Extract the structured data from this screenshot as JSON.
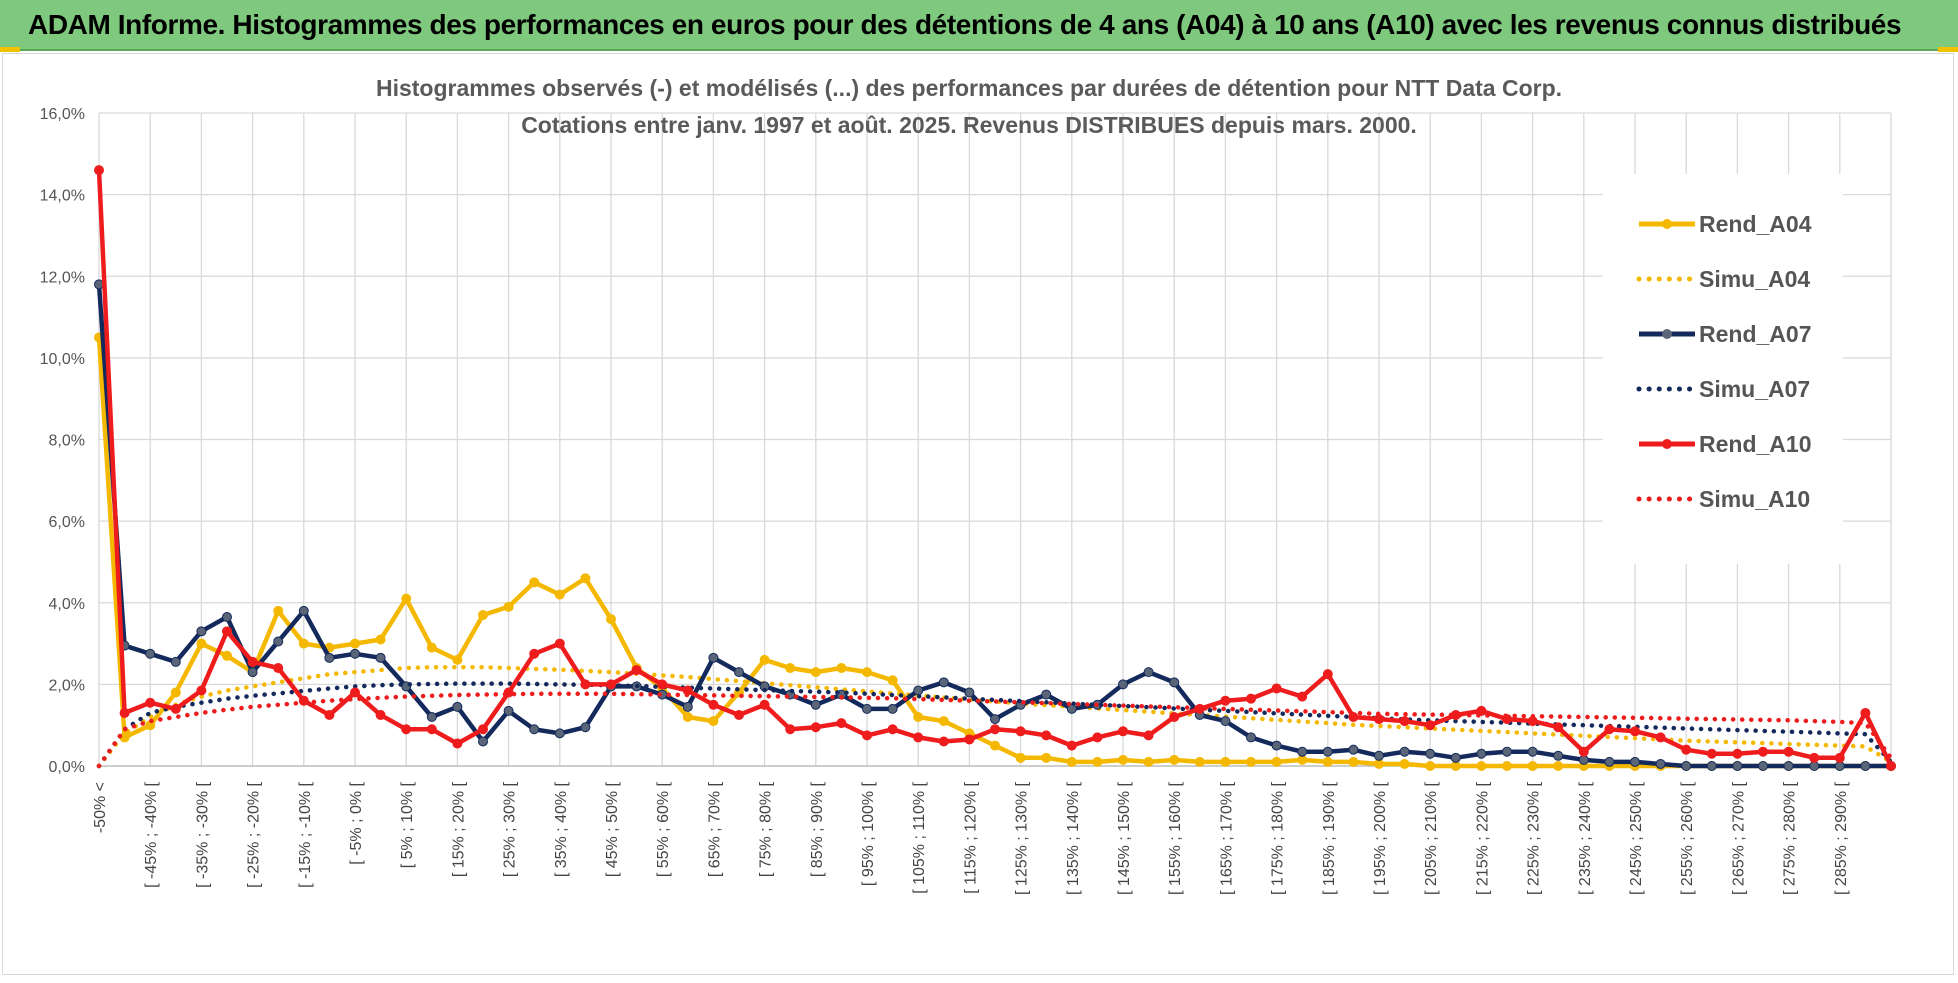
{
  "banner": {
    "title": "ADAM Informe. Histogrammes des performances en euros pour des détentions de 4 ans (A04) à 10 ans (A10) avec les revenus connus distribués"
  },
  "colors": {
    "banner_bg": "#7fc97f",
    "gold": "#f5b800",
    "navy": "#142a5c",
    "red": "#ee1c1c",
    "grid": "#d9d9d9"
  },
  "chart_data": {
    "type": "line",
    "title": "Histogrammes observés (-) et modélisés (...) des performances par durées de détention pour NTT Data Corp.",
    "subtitle": "Cotations entre janv. 1997 et août. 2025. Revenus DISTRIBUES depuis mars. 2000.",
    "ylim": [
      0,
      16
    ],
    "y_ticks": [
      "0,0%",
      "2,0%",
      "4,0%",
      "6,0%",
      "8,0%",
      "10,0%",
      "12,0%",
      "14,0%",
      "16,0%"
    ],
    "grid": true,
    "legend_position": "right",
    "categories": [
      "-50% <",
      "[ -50% ; -45% [",
      "[ -45% ; -40% [",
      "[ -40% ; -35% [",
      "[ -35% ; -30% [",
      "[ -30% ; -25% [",
      "[ -25% ; -20% [",
      "[ -20% ; -15% [",
      "[ -15% ; -10% [",
      "[ -10% ; -5% [",
      "[ -5% ; 0% [",
      "[ 0% ; 5% [",
      "[ 5% ; 10% [",
      "[ 10% ; 15% [",
      "[ 15% ; 20% [",
      "[ 20% ; 25% [",
      "[ 25% ; 30% [",
      "[ 30% ; 35% [",
      "[ 35% ; 40% [",
      "[ 40% ; 45% [",
      "[ 45% ; 50% [",
      "[ 50% ; 55% [",
      "[ 55% ; 60% [",
      "[ 60% ; 65% [",
      "[ 65% ; 70% [",
      "[ 70% ; 75% [",
      "[ 75% ; 80% [",
      "[ 80% ; 85% [",
      "[ 85% ; 90% [",
      "[ 90% ; 95% [",
      "[ 95% ; 100% [",
      "[ 100% ; 105% [",
      "[ 105% ; 110% [",
      "[ 110% ; 115% [",
      "[ 115% ; 120% [",
      "[ 120% ; 125% [",
      "[ 125% ; 130% [",
      "[ 130% ; 135% [",
      "[ 135% ; 140% [",
      "[ 140% ; 145% [",
      "[ 145% ; 150% [",
      "[ 150% ; 155% [",
      "[ 155% ; 160% [",
      "[ 160% ; 165% [",
      "[ 165% ; 170% [",
      "[ 170% ; 175% [",
      "[ 175% ; 180% [",
      "[ 180% ; 185% [",
      "[ 185% ; 190% [",
      "[ 190% ; 195% [",
      "[ 195% ; 200% [",
      "[ 200% ; 205% [",
      "[ 205% ; 210% [",
      "[ 210% ; 215% [",
      "[ 215% ; 220% [",
      "[ 220% ; 225% [",
      "[ 225% ; 230% [",
      "[ 230% ; 235% [",
      "[ 235% ; 240% [",
      "[ 240% ; 245% [",
      "[ 245% ; 250% [",
      "[ 250% ; 255% [",
      "[ 255% ; 260% [",
      "[ 260% ; 265% [",
      "[ 265% ; 270% [",
      "[ 270% ; 275% [",
      "[ 275% ; 280% [",
      "[ 280% ; 285% [",
      "[ 285% ; 290% [",
      "[ 290% ; 295% [",
      "[ 295% ; 300% ["
    ],
    "visible_tick_labels": [
      "-50% <",
      "[ -45% ; -40% [",
      "[ -35% ; -30% [",
      "[ -25% ; -20% [",
      "[ -15% ; -10% [",
      "[ -5% ; 0% [",
      "[ 5% ; 10% [",
      "[ 15% ; 20% [",
      "[ 25% ; 30% [",
      "[ 35% ; 40% [",
      "[ 45% ; 50% [",
      "[ 55% ; 60% [",
      "[ 65% ; 70% [",
      "[ 75% ; 80% [",
      "[ 85% ; 90% [",
      "[ 95% ; 100% [",
      "[ 105% ; 110% [",
      "[ 115% ; 120% [",
      "[ 125% ; 130% [",
      "[ 135% ; 140% [",
      "[ 145% ; 150% [",
      "[ 155% ; 160% [",
      "[ 165% ; 170% [",
      "[ 175% ; 180% [",
      "[ 185% ; 190% [",
      "[ 195% ; 200% [",
      "[ 205% ; 210% [",
      "[ 215% ; 220% [",
      "[ 225% ; 230% [",
      "[ 235% ; 240% [",
      "[ 245% ; 250% [",
      "[ 255% ; 260% [",
      "[ 265% ; 270% [",
      "[ 275% ; 280% [",
      "[ 285% ; 290% ["
    ],
    "series": [
      {
        "name": "Rend_A04",
        "style": "solid",
        "markers": true,
        "color": "#f5b800",
        "values": [
          10.5,
          0.7,
          1.0,
          1.8,
          3.0,
          2.7,
          2.3,
          3.8,
          3.0,
          2.9,
          3.0,
          3.1,
          4.1,
          2.9,
          2.6,
          3.7,
          3.9,
          4.5,
          4.2,
          4.6,
          3.6,
          2.4,
          1.9,
          1.2,
          1.1,
          1.8,
          2.6,
          2.4,
          2.3,
          2.4,
          2.3,
          2.1,
          1.2,
          1.1,
          0.8,
          0.5,
          0.2,
          0.2,
          0.1,
          0.1,
          0.15,
          0.1,
          0.15,
          0.1,
          0.1,
          0.1,
          0.1,
          0.15,
          0.1,
          0.1,
          0.05,
          0.05,
          0.0,
          0.0,
          0.0,
          0.0,
          0.0,
          0.0,
          0.0,
          0.0,
          0.0,
          0.0,
          0.0,
          0.0,
          0.0,
          0.0,
          0.0,
          0.0,
          0.0,
          0.0,
          0.0
        ]
      },
      {
        "name": "Simu_A04",
        "style": "dotted",
        "markers": false,
        "color": "#f5b800",
        "values": [
          0.0,
          0.8,
          1.2,
          1.5,
          1.7,
          1.85,
          1.95,
          2.05,
          2.15,
          2.25,
          2.3,
          2.35,
          2.4,
          2.42,
          2.42,
          2.42,
          2.4,
          2.38,
          2.36,
          2.33,
          2.3,
          2.26,
          2.22,
          2.18,
          2.13,
          2.08,
          2.03,
          1.98,
          1.93,
          1.88,
          1.83,
          1.78,
          1.73,
          1.68,
          1.63,
          1.58,
          1.53,
          1.49,
          1.45,
          1.41,
          1.37,
          1.33,
          1.29,
          1.25,
          1.21,
          1.17,
          1.13,
          1.09,
          1.05,
          1.01,
          0.98,
          0.95,
          0.92,
          0.89,
          0.86,
          0.83,
          0.8,
          0.77,
          0.74,
          0.71,
          0.68,
          0.65,
          0.62,
          0.6,
          0.58,
          0.56,
          0.54,
          0.52,
          0.5,
          0.48,
          0.1
        ]
      },
      {
        "name": "Rend_A07",
        "style": "solid",
        "markers": true,
        "color": "#142a5c",
        "values": [
          11.8,
          2.95,
          2.75,
          2.55,
          3.3,
          3.65,
          2.3,
          3.05,
          3.8,
          2.65,
          2.75,
          2.65,
          1.95,
          1.2,
          1.45,
          0.6,
          1.35,
          0.9,
          0.8,
          0.95,
          1.95,
          1.95,
          1.75,
          1.45,
          2.65,
          2.3,
          1.95,
          1.75,
          1.5,
          1.75,
          1.4,
          1.4,
          1.85,
          2.05,
          1.8,
          1.15,
          1.5,
          1.75,
          1.4,
          1.5,
          2.0,
          2.3,
          2.05,
          1.25,
          1.1,
          0.7,
          0.5,
          0.35,
          0.35,
          0.4,
          0.25,
          0.35,
          0.3,
          0.2,
          0.3,
          0.35,
          0.35,
          0.25,
          0.15,
          0.1,
          0.1,
          0.05,
          0.0,
          0.0,
          0.0,
          0.0,
          0.0,
          0.0,
          0.0,
          0.0,
          0.0
        ]
      },
      {
        "name": "Simu_A07",
        "style": "dotted",
        "markers": false,
        "color": "#142a5c",
        "values": [
          0.0,
          0.9,
          1.3,
          1.45,
          1.55,
          1.65,
          1.72,
          1.78,
          1.84,
          1.9,
          1.95,
          1.98,
          2.0,
          2.01,
          2.02,
          2.02,
          2.02,
          2.01,
          2.0,
          1.99,
          1.98,
          1.96,
          1.94,
          1.92,
          1.9,
          1.88,
          1.86,
          1.84,
          1.82,
          1.8,
          1.77,
          1.74,
          1.71,
          1.68,
          1.65,
          1.62,
          1.59,
          1.56,
          1.53,
          1.5,
          1.47,
          1.44,
          1.41,
          1.38,
          1.35,
          1.32,
          1.29,
          1.26,
          1.23,
          1.2,
          1.17,
          1.14,
          1.12,
          1.1,
          1.08,
          1.06,
          1.04,
          1.02,
          1.0,
          0.98,
          0.96,
          0.94,
          0.92,
          0.9,
          0.88,
          0.86,
          0.84,
          0.82,
          0.8,
          0.78,
          0.1
        ]
      },
      {
        "name": "Rend_A10",
        "style": "solid",
        "markers": true,
        "color": "#ee1c1c",
        "values": [
          14.6,
          1.3,
          1.55,
          1.4,
          1.85,
          3.3,
          2.55,
          2.4,
          1.6,
          1.25,
          1.8,
          1.25,
          0.9,
          0.9,
          0.55,
          0.9,
          1.8,
          2.75,
          3.0,
          2.0,
          2.0,
          2.35,
          2.0,
          1.85,
          1.5,
          1.25,
          1.5,
          0.9,
          0.95,
          1.05,
          0.75,
          0.9,
          0.7,
          0.6,
          0.65,
          0.9,
          0.85,
          0.75,
          0.5,
          0.7,
          0.85,
          0.75,
          1.2,
          1.4,
          1.6,
          1.65,
          1.9,
          1.7,
          2.25,
          1.2,
          1.15,
          1.1,
          1.0,
          1.25,
          1.35,
          1.15,
          1.1,
          0.95,
          0.35,
          0.9,
          0.85,
          0.7,
          0.4,
          0.3,
          0.3,
          0.35,
          0.35,
          0.2,
          0.2,
          1.3,
          0.0
        ]
      },
      {
        "name": "Simu_A10",
        "style": "dotted",
        "markers": false,
        "color": "#ee1c1c",
        "values": [
          0.0,
          0.9,
          1.1,
          1.2,
          1.3,
          1.38,
          1.45,
          1.5,
          1.55,
          1.6,
          1.64,
          1.67,
          1.7,
          1.72,
          1.74,
          1.75,
          1.76,
          1.77,
          1.77,
          1.77,
          1.77,
          1.76,
          1.75,
          1.74,
          1.73,
          1.72,
          1.71,
          1.7,
          1.69,
          1.68,
          1.67,
          1.66,
          1.64,
          1.62,
          1.6,
          1.58,
          1.56,
          1.54,
          1.52,
          1.5,
          1.48,
          1.46,
          1.44,
          1.42,
          1.4,
          1.38,
          1.36,
          1.34,
          1.32,
          1.3,
          1.28,
          1.27,
          1.26,
          1.25,
          1.24,
          1.23,
          1.22,
          1.21,
          1.2,
          1.19,
          1.18,
          1.17,
          1.16,
          1.15,
          1.14,
          1.13,
          1.12,
          1.1,
          1.08,
          1.05,
          0.2
        ]
      }
    ]
  }
}
